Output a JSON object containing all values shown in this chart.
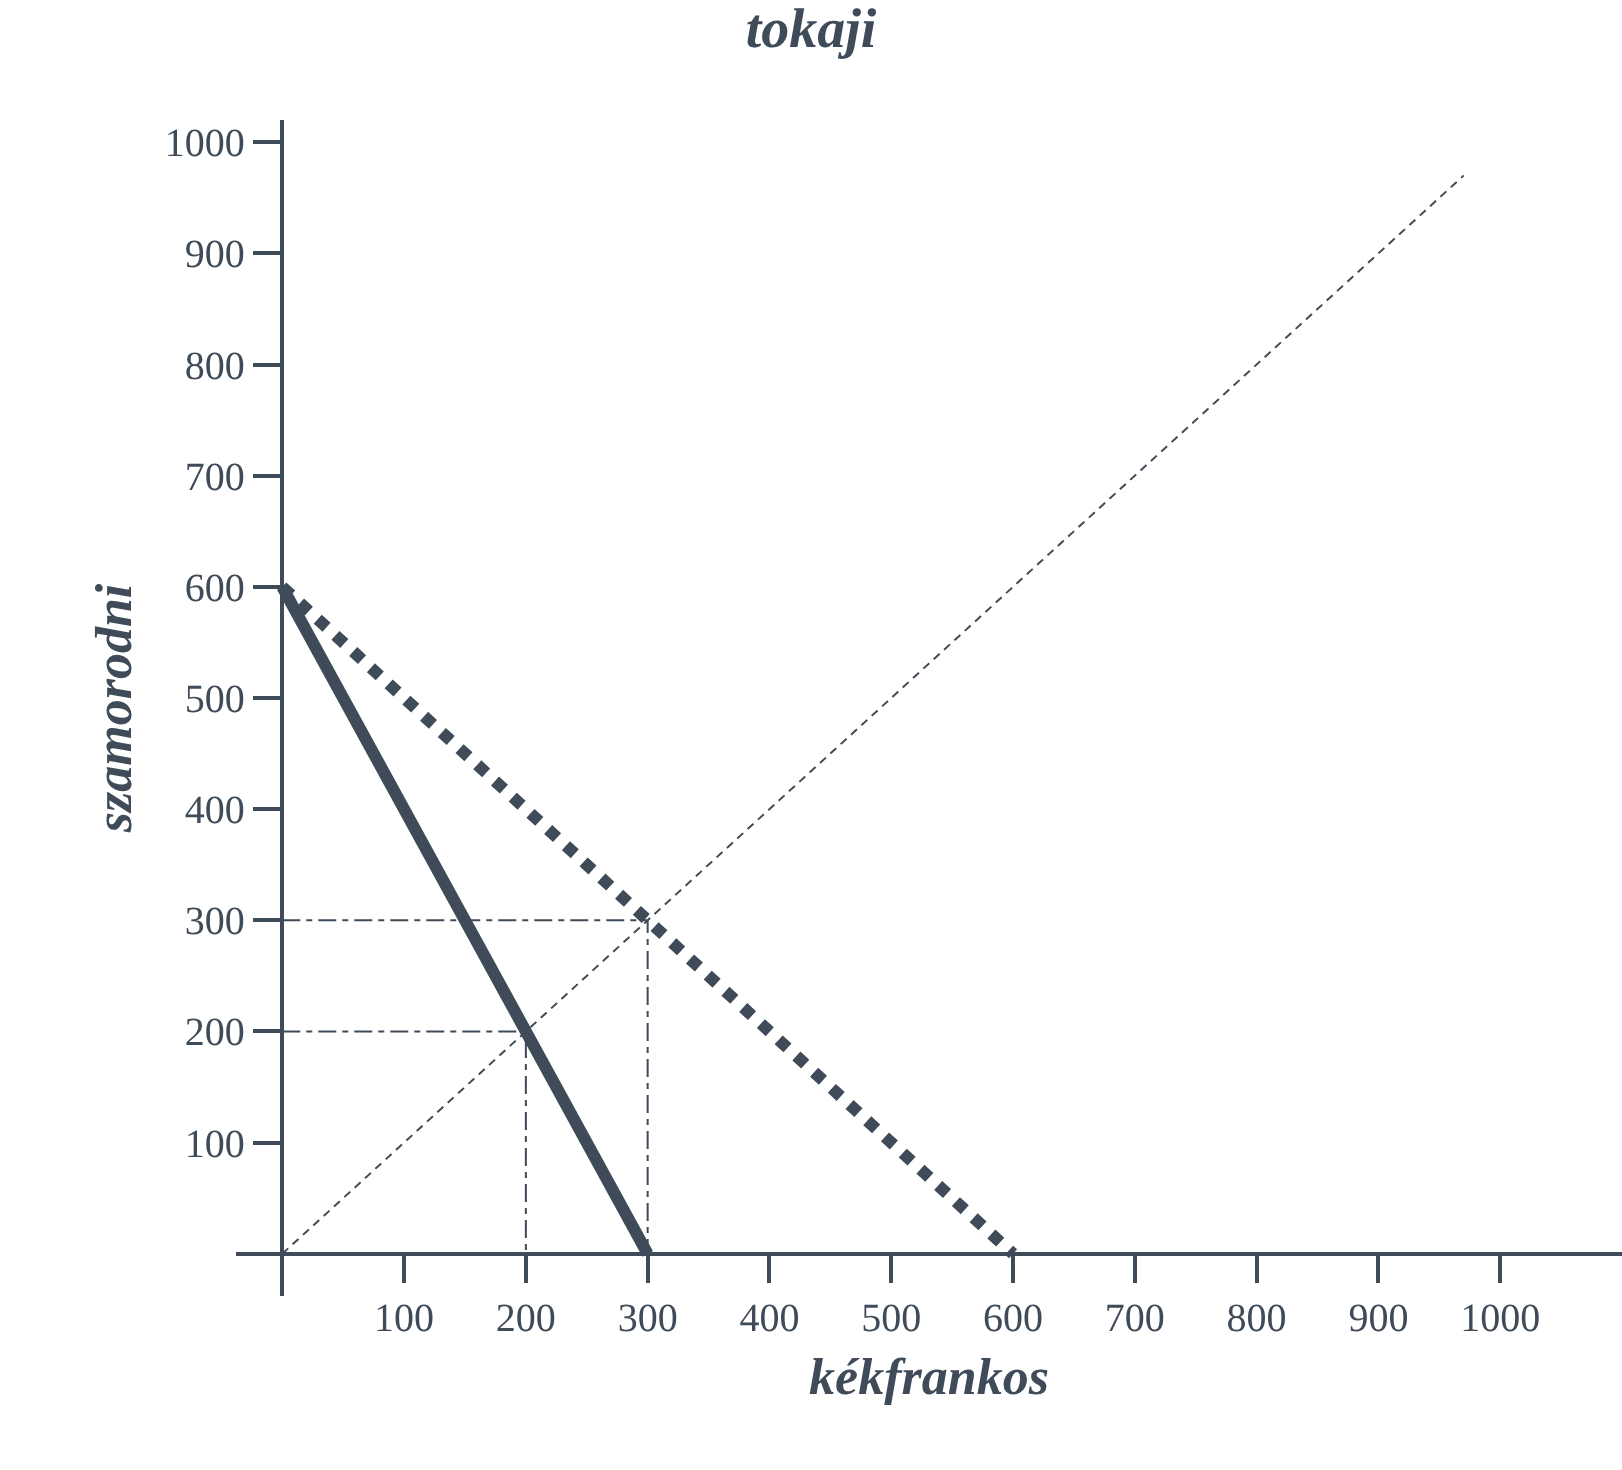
{
  "chart_data": {
    "type": "line",
    "title": "tokaji",
    "xlabel": "kékfrankos",
    "ylabel": "szamorodni",
    "xlim": [
      -38,
      1100
    ],
    "ylim": [
      -38,
      1020
    ],
    "xticks": [
      100,
      200,
      300,
      400,
      500,
      600,
      700,
      800,
      900,
      1000
    ],
    "yticks": [
      100,
      200,
      300,
      400,
      500,
      600,
      700,
      800,
      900,
      1000
    ],
    "grid": false,
    "marker": "none",
    "series": [
      {
        "x": [
          0,
          300
        ],
        "values": [
          600,
          0
        ],
        "color": "#3f4b58",
        "line_style": "solid"
      },
      {
        "x": [
          0,
          600
        ],
        "values": [
          600,
          0
        ],
        "color": "#3f4b58",
        "line_style": "dotted"
      },
      {
        "x": [
          0,
          970
        ],
        "values": [
          0,
          970
        ],
        "color": "#3f4b58",
        "line_style": "dashed"
      },
      {
        "x": [
          0,
          300,
          300
        ],
        "values": [
          300,
          300,
          0
        ],
        "color": "#3f4b58",
        "line_style": "dashdot"
      },
      {
        "x": [
          0,
          200,
          200
        ],
        "values": [
          200,
          200,
          0
        ],
        "color": "#3f4b58",
        "line_style": "dashdot"
      }
    ]
  }
}
